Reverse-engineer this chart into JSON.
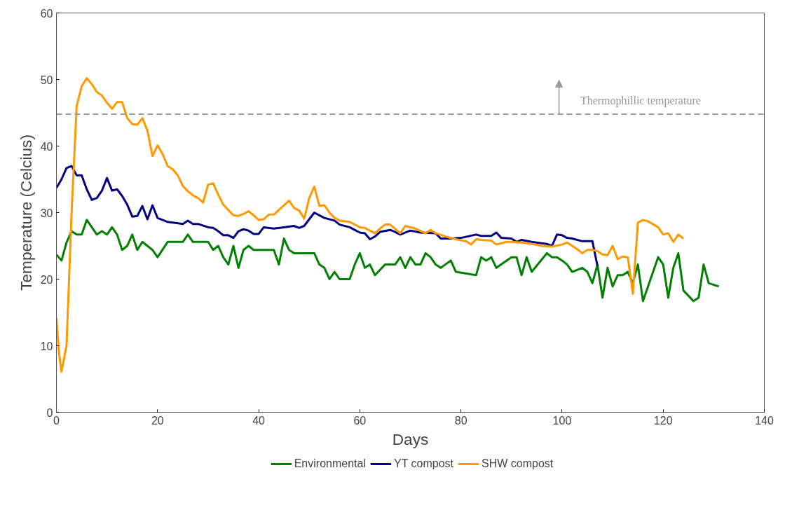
{
  "chart_data": {
    "type": "line",
    "xlabel": "Days",
    "ylabel": "Temperature (Celcius)",
    "xlim": [
      0,
      140
    ],
    "xticks": [
      0,
      20,
      40,
      60,
      80,
      100,
      120,
      140
    ],
    "ylim": [
      0,
      60
    ],
    "yticks": [
      0,
      10,
      20,
      30,
      40,
      50,
      60
    ],
    "grid": false,
    "legend": "bottom",
    "line_style": "solid",
    "marker": "none",
    "series": [
      {
        "name": "Environmental",
        "color": "#008000",
        "x": [
          0,
          1,
          2,
          3,
          4,
          5,
          6,
          8,
          9,
          10,
          11,
          12,
          13,
          14,
          15,
          16,
          17,
          19,
          20,
          22,
          25,
          26,
          27,
          30,
          31,
          32,
          33,
          34,
          35,
          36,
          37,
          38,
          39,
          43,
          44,
          45,
          46,
          47,
          51,
          52,
          53,
          54,
          55,
          56,
          58,
          59,
          60,
          61,
          62,
          63,
          65,
          67,
          68,
          69,
          70,
          71,
          72,
          73,
          74,
          75,
          76,
          78,
          79,
          83,
          84,
          85,
          86,
          87,
          90,
          91,
          92,
          93,
          94,
          97,
          98,
          99,
          100,
          101,
          102,
          104,
          105,
          106,
          107,
          108,
          109,
          110,
          111,
          112,
          113,
          114,
          115,
          116,
          119,
          120,
          121,
          122,
          123,
          124,
          126,
          127,
          128,
          129,
          131
        ],
        "values": [
          23.7,
          22.8,
          25.5,
          27.2,
          26.7,
          26.7,
          28.9,
          26.7,
          27.2,
          26.7,
          27.8,
          26.7,
          24.4,
          25,
          26.7,
          24.4,
          25.6,
          24.4,
          23.3,
          25.6,
          25.6,
          26.7,
          25.6,
          25.6,
          24.4,
          25,
          23.3,
          22.2,
          25,
          21.7,
          24.4,
          25,
          24.4,
          24.4,
          22.2,
          26.1,
          24.4,
          23.9,
          23.9,
          22.2,
          21.7,
          20,
          21.1,
          20,
          20,
          22.2,
          23.9,
          21.7,
          22.2,
          20.6,
          22.2,
          22.2,
          23.3,
          21.7,
          23.3,
          22.2,
          22.2,
          23.9,
          23.3,
          22.2,
          21.7,
          22.8,
          21.1,
          20.6,
          23.3,
          22.8,
          23.3,
          21.7,
          23.3,
          23.3,
          20.6,
          23.3,
          21.1,
          23.9,
          23.3,
          23.3,
          22.8,
          22.2,
          21.1,
          21.7,
          21.1,
          19.4,
          22.2,
          17.2,
          21.7,
          18.9,
          20.6,
          20.6,
          21.1,
          19.4,
          22.2,
          16.7,
          23.3,
          22.2,
          17.2,
          21.7,
          23.9,
          18.3,
          16.7,
          17.2,
          22.2,
          19.4,
          18.9
        ]
      },
      {
        "name": "YT compost",
        "color": "#000080",
        "x": [
          0,
          1,
          2,
          3,
          4,
          5,
          6,
          7,
          8,
          9,
          10,
          11,
          12,
          13,
          14,
          15,
          16,
          17,
          18,
          19,
          20,
          22,
          25,
          26,
          27,
          28,
          30,
          31,
          32,
          33,
          34,
          35,
          36,
          37,
          38,
          39,
          40,
          41,
          43,
          45,
          47,
          48,
          49,
          50,
          51,
          52,
          53,
          55,
          56,
          58,
          60,
          61,
          62,
          63,
          64,
          66,
          67,
          68,
          70,
          72,
          75,
          76,
          78,
          80,
          83,
          84,
          86,
          87,
          88,
          90,
          91,
          92,
          94,
          97,
          98,
          99,
          100,
          101,
          102,
          104,
          106,
          107
        ],
        "values": [
          33.7,
          35,
          36.7,
          37,
          35.6,
          35.6,
          33.5,
          31.9,
          32.2,
          33.3,
          35.2,
          33.3,
          33.5,
          32.5,
          31.2,
          29.4,
          29.5,
          31,
          29,
          31.1,
          29.2,
          28.6,
          28.3,
          28.8,
          28.3,
          28.3,
          27.8,
          27.7,
          27.2,
          26.6,
          26.6,
          26.2,
          27.2,
          27.5,
          27.3,
          26.8,
          26.8,
          27.8,
          27.6,
          27.8,
          28,
          27.7,
          28,
          29,
          30,
          29.6,
          29.2,
          28.8,
          28.2,
          27.8,
          27,
          26.9,
          26,
          26.4,
          27.1,
          27.4,
          27.1,
          26.7,
          27.3,
          27,
          26.9,
          26.1,
          26.1,
          26.2,
          26.7,
          26.5,
          26.5,
          27,
          26.2,
          26.1,
          25.6,
          25.9,
          25.6,
          25.3,
          25,
          26.7,
          26.6,
          26.2,
          26.1,
          25.7,
          25.7,
          22
        ]
      },
      {
        "name": "SHW compost",
        "color": "#ff9900",
        "x": [
          0,
          0.5,
          1,
          2,
          3,
          4,
          5,
          6,
          7,
          8,
          9,
          10,
          11,
          12,
          13,
          14,
          15,
          16,
          17,
          18,
          19,
          20,
          21,
          22,
          23,
          24,
          25,
          26,
          27,
          28,
          29,
          30,
          31,
          32,
          33,
          34,
          35,
          36,
          37,
          38,
          39,
          40,
          41,
          42,
          43,
          44,
          45,
          46,
          47,
          48,
          49,
          50,
          51,
          52,
          53,
          54,
          55,
          56,
          58,
          60,
          61,
          63,
          64,
          65,
          66,
          68,
          69,
          71,
          73,
          74,
          75,
          77,
          79,
          81,
          82,
          83,
          84,
          86,
          87,
          89,
          90,
          92,
          94,
          96,
          98,
          100,
          101,
          103,
          104,
          105,
          106,
          107,
          108,
          109,
          110,
          111,
          112,
          113,
          114,
          115,
          116,
          117,
          119,
          120,
          121,
          122,
          123,
          124
        ],
        "values": [
          14.2,
          9,
          6.1,
          10,
          30,
          46,
          49,
          50.2,
          49.3,
          48.1,
          47.6,
          46.5,
          45.6,
          46.6,
          46.6,
          44.2,
          43.3,
          43.2,
          44.2,
          42.3,
          38.5,
          40.1,
          38.8,
          37,
          36.5,
          35.6,
          34,
          33.2,
          32.6,
          32.2,
          31.5,
          34.2,
          34.4,
          32.7,
          31.2,
          30.4,
          29.6,
          29.5,
          29.8,
          30.2,
          29.6,
          28.9,
          29,
          29.7,
          29.7,
          30.4,
          31.1,
          31.8,
          30.7,
          30.3,
          29.1,
          32.2,
          33.9,
          31,
          31.1,
          30,
          29.2,
          28.8,
          28.6,
          27.8,
          27.7,
          26.9,
          27.6,
          28.2,
          28.2,
          26.9,
          28,
          27.6,
          26.9,
          27.4,
          26.9,
          26.4,
          26,
          25.7,
          25.2,
          26,
          25.9,
          25.8,
          25.2,
          25.6,
          25.6,
          25.5,
          25.3,
          25,
          24.9,
          25.2,
          25.5,
          24.5,
          23.9,
          24.4,
          24.4,
          24.2,
          23.7,
          23.6,
          25,
          23,
          23.4,
          23.3,
          17.8,
          28.5,
          28.9,
          28.7,
          27.8,
          26.7,
          26.9,
          25.6,
          26.7,
          26.1
        ]
      }
    ],
    "ref_lines": [
      {
        "axis": "y",
        "value": 44.8,
        "label": "Thermophillic temperature",
        "color": "#999999",
        "line_style": "dashed"
      }
    ]
  }
}
